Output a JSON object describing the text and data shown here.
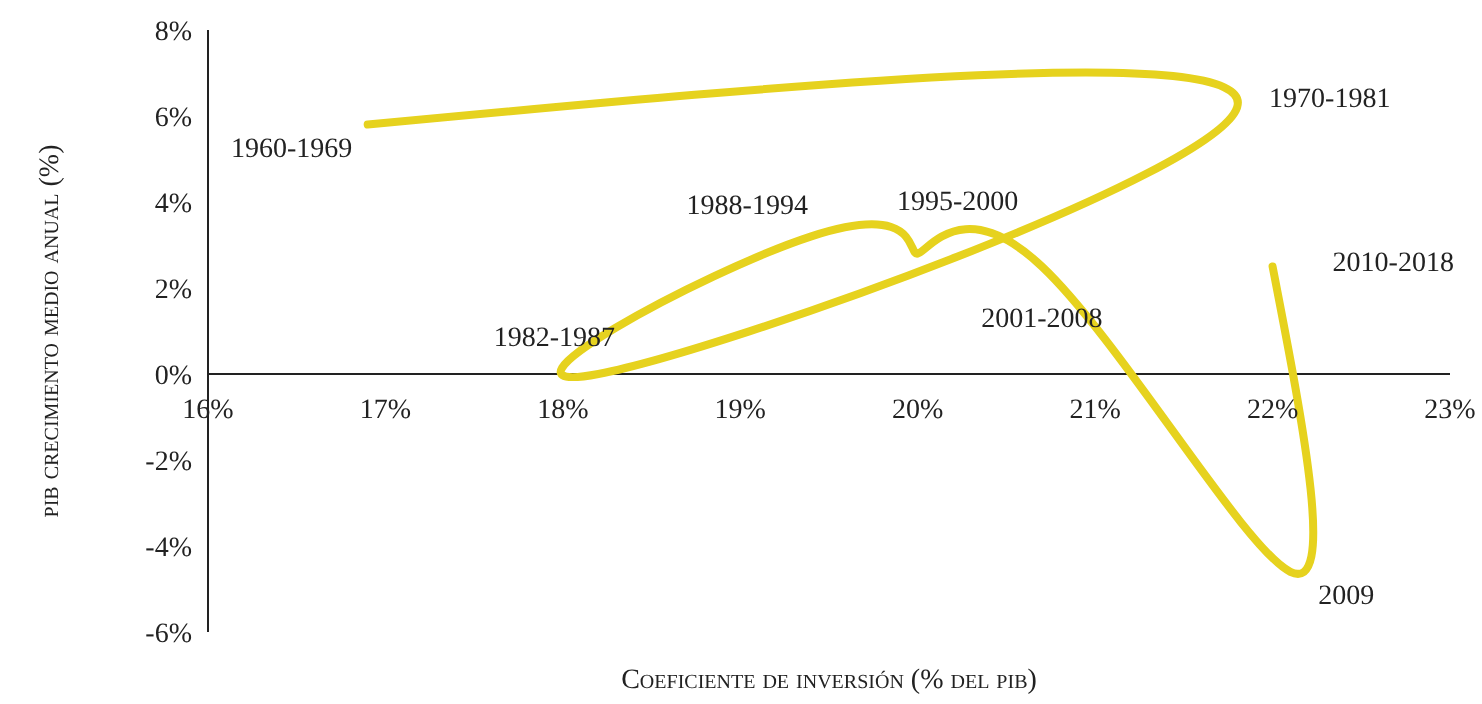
{
  "chart_data": {
    "type": "line",
    "xlabel": "Coeficiente de inversión (% del pib)",
    "ylabel": "pib crecimiento medio anual (%)",
    "series": [
      {
        "color": "#e6d21e",
        "x": [
          16.9,
          21.8,
          18.2,
          19.4,
          20.0,
          20.7,
          22.1,
          22.0
        ],
        "values": [
          5.8,
          6.2,
          0.0,
          3.2,
          2.8,
          2.5,
          -4.6,
          2.5
        ]
      }
    ],
    "annotations": [
      {
        "text": "1960-1969",
        "x": 16.9,
        "y": 5.8
      },
      {
        "text": "1970-1981",
        "x": 21.8,
        "y": 6.2
      },
      {
        "text": "1982-1987",
        "x": 18.2,
        "y": 0.0
      },
      {
        "text": "1988-1994",
        "x": 19.4,
        "y": 3.2
      },
      {
        "text": "1995-2000",
        "x": 20.0,
        "y": 2.8
      },
      {
        "text": "2001-2008",
        "x": 20.7,
        "y": 2.5
      },
      {
        "text": "2009",
        "x": 22.1,
        "y": -4.6
      },
      {
        "text": "2010-2018",
        "x": 22.0,
        "y": 2.5
      }
    ],
    "xlim": [
      16,
      23
    ],
    "ylim": [
      -6,
      8
    ],
    "xticks": [
      {
        "value": 16,
        "label": "16%"
      },
      {
        "value": 17,
        "label": "17%"
      },
      {
        "value": 18,
        "label": "18%"
      },
      {
        "value": 19,
        "label": "19%"
      },
      {
        "value": 20,
        "label": "20%"
      },
      {
        "value": 21,
        "label": "21%"
      },
      {
        "value": 22,
        "label": "22%"
      },
      {
        "value": 23,
        "label": "23%"
      }
    ],
    "yticks": [
      {
        "value": -6,
        "label": "-6%"
      },
      {
        "value": -4,
        "label": "-4%"
      },
      {
        "value": -2,
        "label": "-2%"
      },
      {
        "value": 0,
        "label": "0%"
      },
      {
        "value": 2,
        "label": "2%"
      },
      {
        "value": 4,
        "label": "4%"
      },
      {
        "value": 6,
        "label": "6%"
      },
      {
        "value": 8,
        "label": "8%"
      }
    ],
    "marker": "none",
    "line_style": "solid"
  }
}
